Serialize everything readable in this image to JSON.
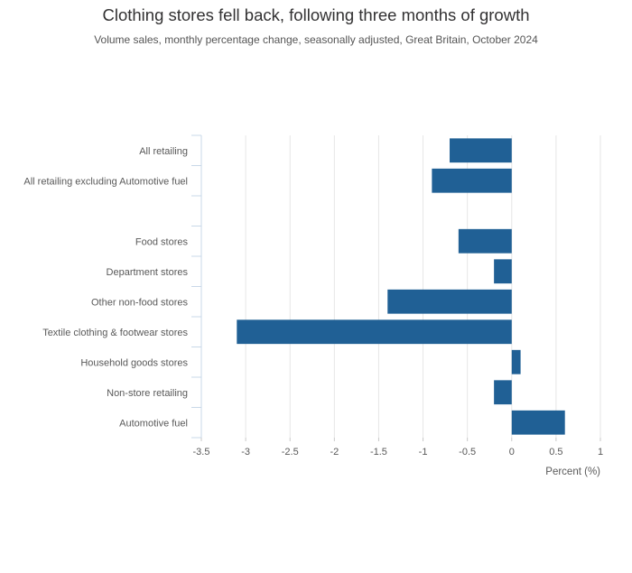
{
  "chart_data": {
    "type": "bar",
    "orientation": "horizontal",
    "title": "Clothing stores fell back, following three months of growth",
    "subtitle": "Volume sales, monthly percentage change, seasonally adjusted, Great Britain, October 2024",
    "xlabel": "Percent (%)",
    "ylabel": "",
    "xlim": [
      -3.5,
      1
    ],
    "xticks": [
      -3.5,
      -3,
      -2.5,
      -2,
      -1.5,
      -1,
      -0.5,
      0,
      0.5,
      1
    ],
    "xtick_labels": [
      "-3.5",
      "-3",
      "-2.5",
      "-2",
      "-1.5",
      "-1",
      "-0.5",
      "0",
      "0.5",
      "1"
    ],
    "grid": true,
    "bar_color": "#206095",
    "categories": [
      "All retailing",
      "All retailing excluding Automotive fuel",
      "",
      "Food stores",
      "Department stores",
      "Other non-food stores",
      "Textile clothing & footwear stores",
      "Household goods stores",
      "Non-store retailing",
      "Automotive fuel"
    ],
    "values": [
      -0.7,
      -0.9,
      null,
      -0.6,
      -0.2,
      -1.4,
      -3.1,
      0.1,
      -0.2,
      0.6
    ]
  }
}
